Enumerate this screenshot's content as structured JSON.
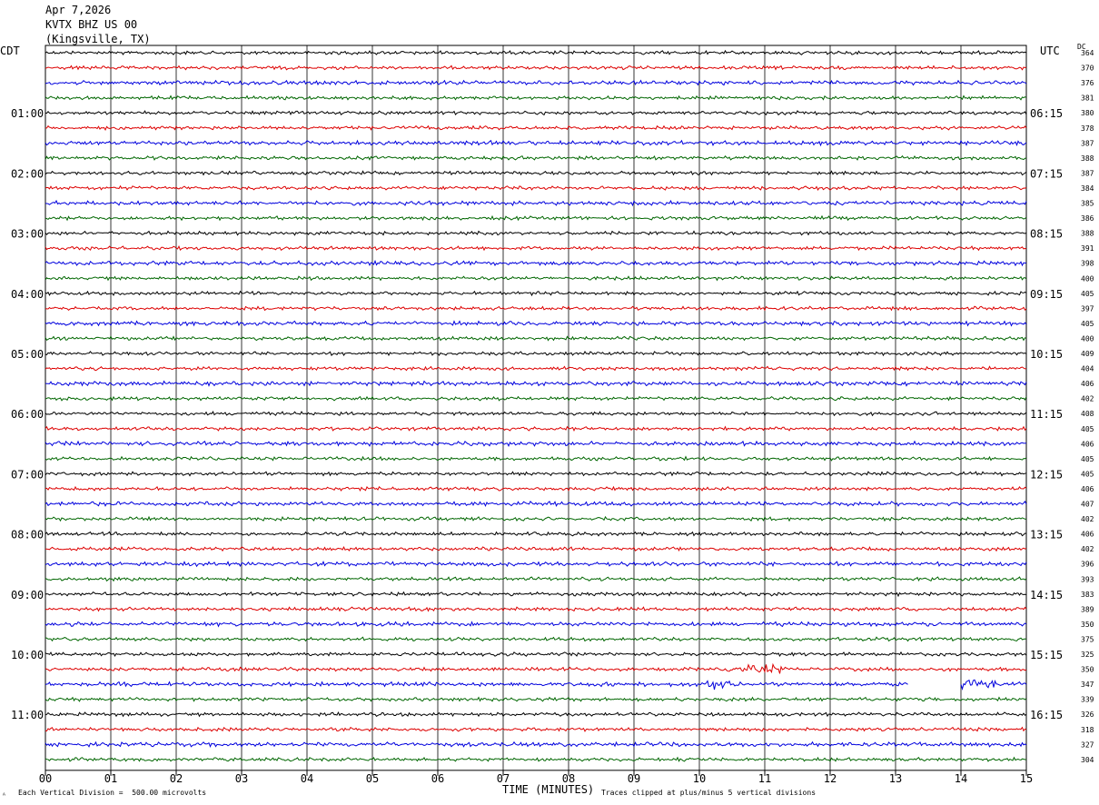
{
  "header": {
    "date": "Apr 7,2026",
    "station": "KVTX BHZ US 00",
    "location": "(Kingsville, TX)"
  },
  "left_label": "CDT",
  "right_label": "UTC",
  "dc_label": "DC",
  "footer": {
    "scale_note": "Each Vertical Division =  500.00 microvolts",
    "clip_note": "Traces clipped at plus/minus 5 vertical divisions",
    "corner_mark": "ᴬ"
  },
  "colors": [
    "#000000",
    "#dd0000",
    "#0000dd",
    "#006600"
  ],
  "chart_data": {
    "type": "line",
    "xlabel": "TIME (MINUTES)",
    "xlim": [
      0,
      15
    ],
    "x_ticks": [
      "00",
      "01",
      "02",
      "03",
      "04",
      "05",
      "06",
      "07",
      "08",
      "09",
      "10",
      "11",
      "12",
      "13",
      "14",
      "15"
    ],
    "left_hour_labels": [
      "01:00",
      "02:00",
      "03:00",
      "04:00",
      "05:00",
      "06:00",
      "07:00",
      "08:00",
      "09:00",
      "10:00",
      "11:00"
    ],
    "right_hour_labels": [
      "06:15",
      "07:15",
      "08:15",
      "09:15",
      "10:15",
      "11:15",
      "12:15",
      "13:15",
      "14:15",
      "15:15",
      "16:15"
    ],
    "traces_per_hour": 4,
    "trace_count": 48,
    "dc_offsets": [
      "364",
      "370",
      "376",
      "381",
      "380",
      "378",
      "387",
      "388",
      "387",
      "384",
      "385",
      "386",
      "388",
      "391",
      "398",
      "400",
      "405",
      "397",
      "405",
      "400",
      "409",
      "404",
      "406",
      "402",
      "408",
      "405",
      "406",
      "405",
      "405",
      "406",
      "407",
      "402",
      "406",
      "402",
      "396",
      "393",
      "383",
      "389",
      "350",
      "375",
      "325",
      "350",
      "347",
      "339",
      "326",
      "318",
      "327",
      "304"
    ],
    "gap": {
      "trace_index": 42,
      "start_min": 13.2,
      "end_min": 14.0
    },
    "events": [
      {
        "trace_index": 41,
        "start_min": 10.4,
        "end_min": 11.3
      },
      {
        "trace_index": 42,
        "start_min": 10.1,
        "end_min": 10.6
      },
      {
        "trace_index": 42,
        "start_min": 14.0,
        "end_min": 14.6
      }
    ]
  }
}
